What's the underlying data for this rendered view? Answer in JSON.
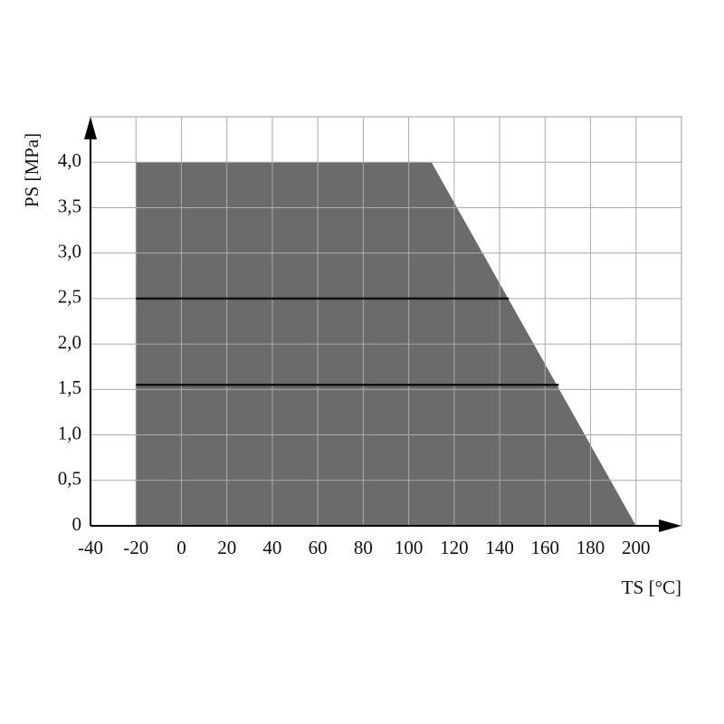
{
  "chart_data": {
    "type": "area",
    "x_label": "TS [°C]",
    "y_label": "PS [MPa]",
    "x": [
      -20,
      -20,
      110,
      200
    ],
    "values": [
      0,
      4.0,
      4.0,
      0
    ],
    "color": "#6b6b6b",
    "lines": [
      {
        "x": [
          -20,
          144
        ],
        "values": [
          2.5,
          2.5
        ],
        "color": "#111111"
      },
      {
        "x": [
          -20,
          166
        ],
        "values": [
          1.55,
          1.55
        ],
        "color": "#111111"
      }
    ],
    "xlim": [
      -40,
      220
    ],
    "xticks": [
      -40,
      -20,
      0,
      20,
      40,
      60,
      80,
      100,
      120,
      140,
      160,
      180,
      200
    ],
    "ylim": [
      0,
      4.5
    ],
    "yticks": [
      0,
      {
        "value": 0.5,
        "label": "0,5"
      },
      {
        "value": 1.0,
        "label": "1,0"
      },
      {
        "value": 1.5,
        "label": "1,5"
      },
      {
        "value": 2.0,
        "label": "2,0"
      },
      {
        "value": 2.5,
        "label": "2,5"
      },
      {
        "value": 3.0,
        "label": "3,0"
      },
      {
        "value": 3.5,
        "label": "3,5"
      },
      {
        "value": 4.0,
        "label": "4,0"
      }
    ],
    "grid": true
  }
}
